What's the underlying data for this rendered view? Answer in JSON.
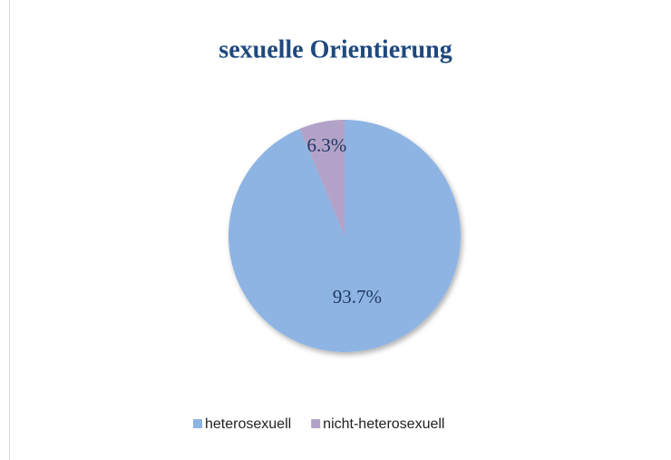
{
  "chart_data": {
    "type": "pie",
    "title": "sexuelle Orientierung",
    "categories": [
      "heterosexuell",
      "nicht-heterosexuell"
    ],
    "values": [
      93.7,
      6.3
    ],
    "value_labels": [
      "93.7%",
      "6.3%"
    ],
    "colors": [
      "#8eb4e3",
      "#b3a2c7"
    ],
    "legend": "bottom"
  }
}
